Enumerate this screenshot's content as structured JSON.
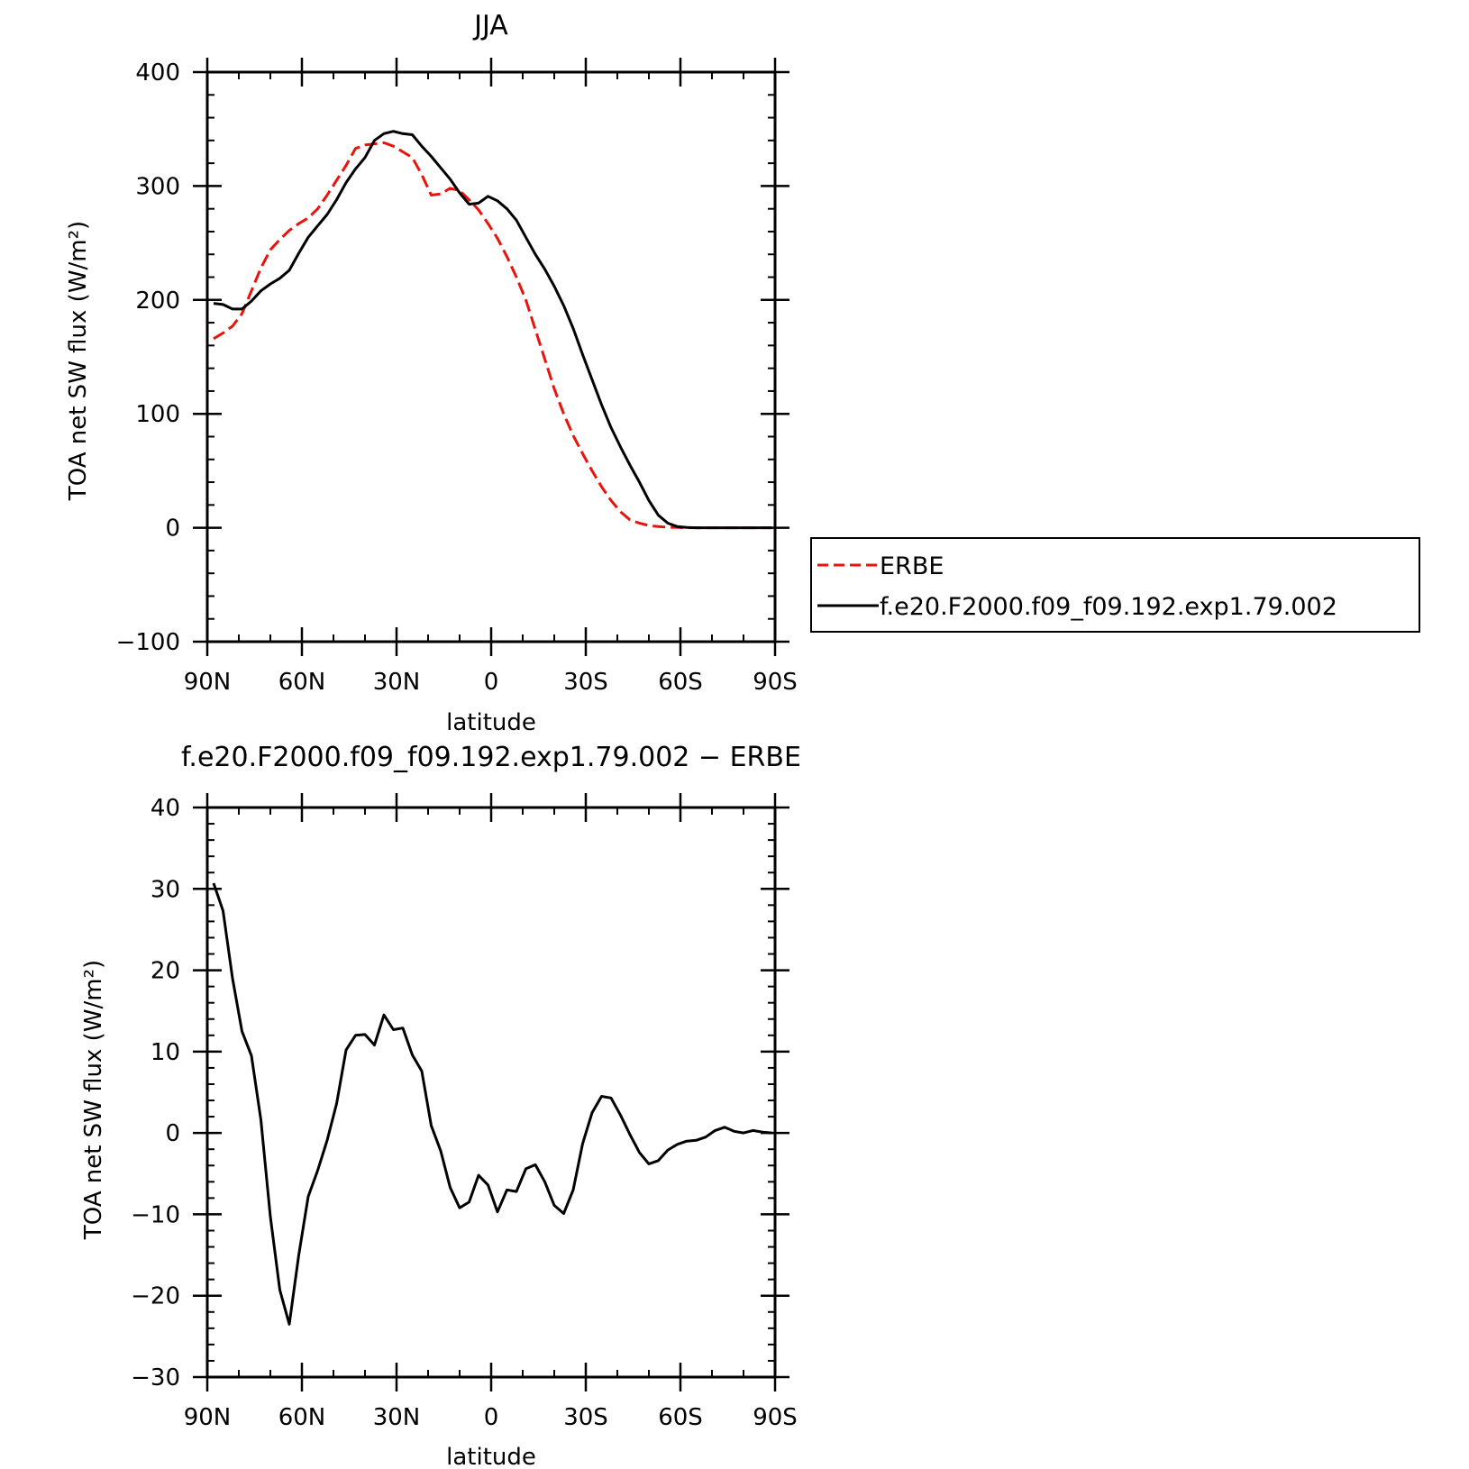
{
  "chart_data": [
    {
      "type": "line",
      "title": "JJA",
      "xlabel": "latitude",
      "ylabel": "TOA net SW flux (W/m²)",
      "xlim": [
        90,
        -90
      ],
      "ylim": [
        -100,
        400
      ],
      "xticks": [
        90,
        60,
        30,
        0,
        -30,
        -60,
        -90
      ],
      "xtick_labels": [
        "90N",
        "60N",
        "30N",
        "0",
        "30S",
        "60S",
        "90S"
      ],
      "yticks": [
        -100,
        0,
        100,
        200,
        300,
        400
      ],
      "ytick_labels": [
        "−100",
        "0",
        "100",
        "200",
        "300",
        "400"
      ],
      "grid": false,
      "legend": "right",
      "series": [
        {
          "name": "ERBE",
          "color": "#e8140c",
          "style": "dashed",
          "x": [
            88,
            85,
            82,
            79,
            76,
            73,
            70,
            67,
            64,
            61,
            58,
            55,
            52,
            49,
            46,
            43,
            40,
            37,
            34,
            31,
            28,
            25,
            22,
            19,
            16,
            13,
            10,
            7,
            4,
            1,
            -2,
            -5,
            -8,
            -11,
            -14,
            -17,
            -20,
            -23,
            -26,
            -29,
            -32,
            -35,
            -38,
            -41,
            -44,
            -47,
            -50,
            -53,
            -56,
            -59,
            -62,
            -65,
            -68,
            -71,
            -74,
            -77,
            -80,
            -83,
            -86,
            -89
          ],
          "y": [
            166,
            171,
            177,
            188,
            208,
            228,
            244,
            253,
            261,
            267,
            272,
            280,
            292,
            305,
            318,
            333,
            336,
            337,
            338,
            335,
            330,
            325,
            310,
            292,
            293,
            298,
            296,
            288,
            279,
            267,
            254,
            238,
            220,
            200,
            174,
            148,
            122,
            100,
            81,
            65,
            50,
            36,
            24,
            14,
            7,
            4,
            2,
            1,
            0.5,
            0.2,
            0,
            0,
            0,
            0,
            0,
            0,
            0,
            0,
            0,
            0
          ]
        },
        {
          "name": "f.e20.F2000.f09_f09.192.exp1.79.002",
          "color": "#000000",
          "style": "solid",
          "x": [
            88,
            85,
            82,
            79,
            76,
            73,
            70,
            67,
            64,
            61,
            58,
            55,
            52,
            49,
            46,
            43,
            40,
            37,
            34,
            31,
            28,
            25,
            22,
            19,
            16,
            13,
            10,
            7,
            4,
            1,
            -2,
            -5,
            -8,
            -11,
            -14,
            -17,
            -20,
            -23,
            -26,
            -29,
            -32,
            -35,
            -38,
            -41,
            -44,
            -47,
            -50,
            -53,
            -56,
            -59,
            -62,
            -65,
            -68,
            -71,
            -74,
            -77,
            -80,
            -83,
            -86,
            -89
          ],
          "y": [
            197,
            196,
            192,
            192,
            199,
            208,
            214,
            219,
            226,
            241,
            255,
            265,
            275,
            288,
            303,
            315,
            325,
            340,
            346,
            348,
            346,
            345,
            335,
            326,
            316,
            306,
            294,
            284,
            285,
            291,
            287,
            280,
            270,
            255,
            240,
            227,
            212,
            195,
            175,
            152,
            130,
            108,
            88,
            71,
            55,
            40,
            24,
            11,
            4,
            1,
            0.3,
            0,
            0,
            0,
            0,
            0,
            0,
            0,
            0,
            0
          ]
        }
      ]
    },
    {
      "type": "line",
      "title": "f.e20.F2000.f09_f09.192.exp1.79.002 − ERBE",
      "xlabel": "latitude",
      "ylabel": "TOA net SW flux (W/m²)",
      "xlim": [
        90,
        -90
      ],
      "ylim": [
        -30,
        40
      ],
      "xticks": [
        90,
        60,
        30,
        0,
        -30,
        -60,
        -90
      ],
      "xtick_labels": [
        "90N",
        "60N",
        "30N",
        "0",
        "30S",
        "60S",
        "90S"
      ],
      "yticks": [
        -30,
        -20,
        -10,
        0,
        10,
        20,
        30,
        40
      ],
      "ytick_labels": [
        "−30",
        "−20",
        "−10",
        "0",
        "10",
        "20",
        "30",
        "40"
      ],
      "grid": false,
      "series": [
        {
          "color": "#000000",
          "style": "solid",
          "x": [
            88,
            85,
            82,
            79,
            76,
            73,
            70,
            67,
            64,
            61,
            58,
            55,
            52,
            49,
            46,
            43,
            40,
            37,
            34,
            31,
            28,
            25,
            22,
            19,
            16,
            13,
            10,
            7,
            4,
            1,
            -2,
            -5,
            -8,
            -11,
            -14,
            -17,
            -20,
            -23,
            -26,
            -29,
            -32,
            -35,
            -38,
            -41,
            -44,
            -47,
            -50,
            -53,
            -56,
            -59,
            -62,
            -65,
            -68,
            -71,
            -74,
            -77,
            -80,
            -83,
            -86,
            -89
          ],
          "y": [
            30.7,
            27.3,
            19,
            12.5,
            9.5,
            1.6,
            -10.3,
            -19.3,
            -23.5,
            -15,
            -7.8,
            -4.6,
            -0.9,
            3.6,
            10.2,
            12,
            12.1,
            10.8,
            14.5,
            12.7,
            12.9,
            9.6,
            7.6,
            0.9,
            -2.2,
            -6.7,
            -9.2,
            -8.5,
            -5.2,
            -6.4,
            -9.7,
            -7,
            -7.2,
            -4.4,
            -3.9,
            -6,
            -8.9,
            -9.9,
            -7,
            -1.3,
            2.5,
            4.5,
            4.3,
            2.2,
            -0.2,
            -2.4,
            -3.8,
            -3.4,
            -2.1,
            -1.4,
            -1,
            -0.9,
            -0.5,
            0.3,
            0.7,
            0.2,
            0,
            0.3,
            0.1,
            0
          ]
        }
      ]
    }
  ]
}
